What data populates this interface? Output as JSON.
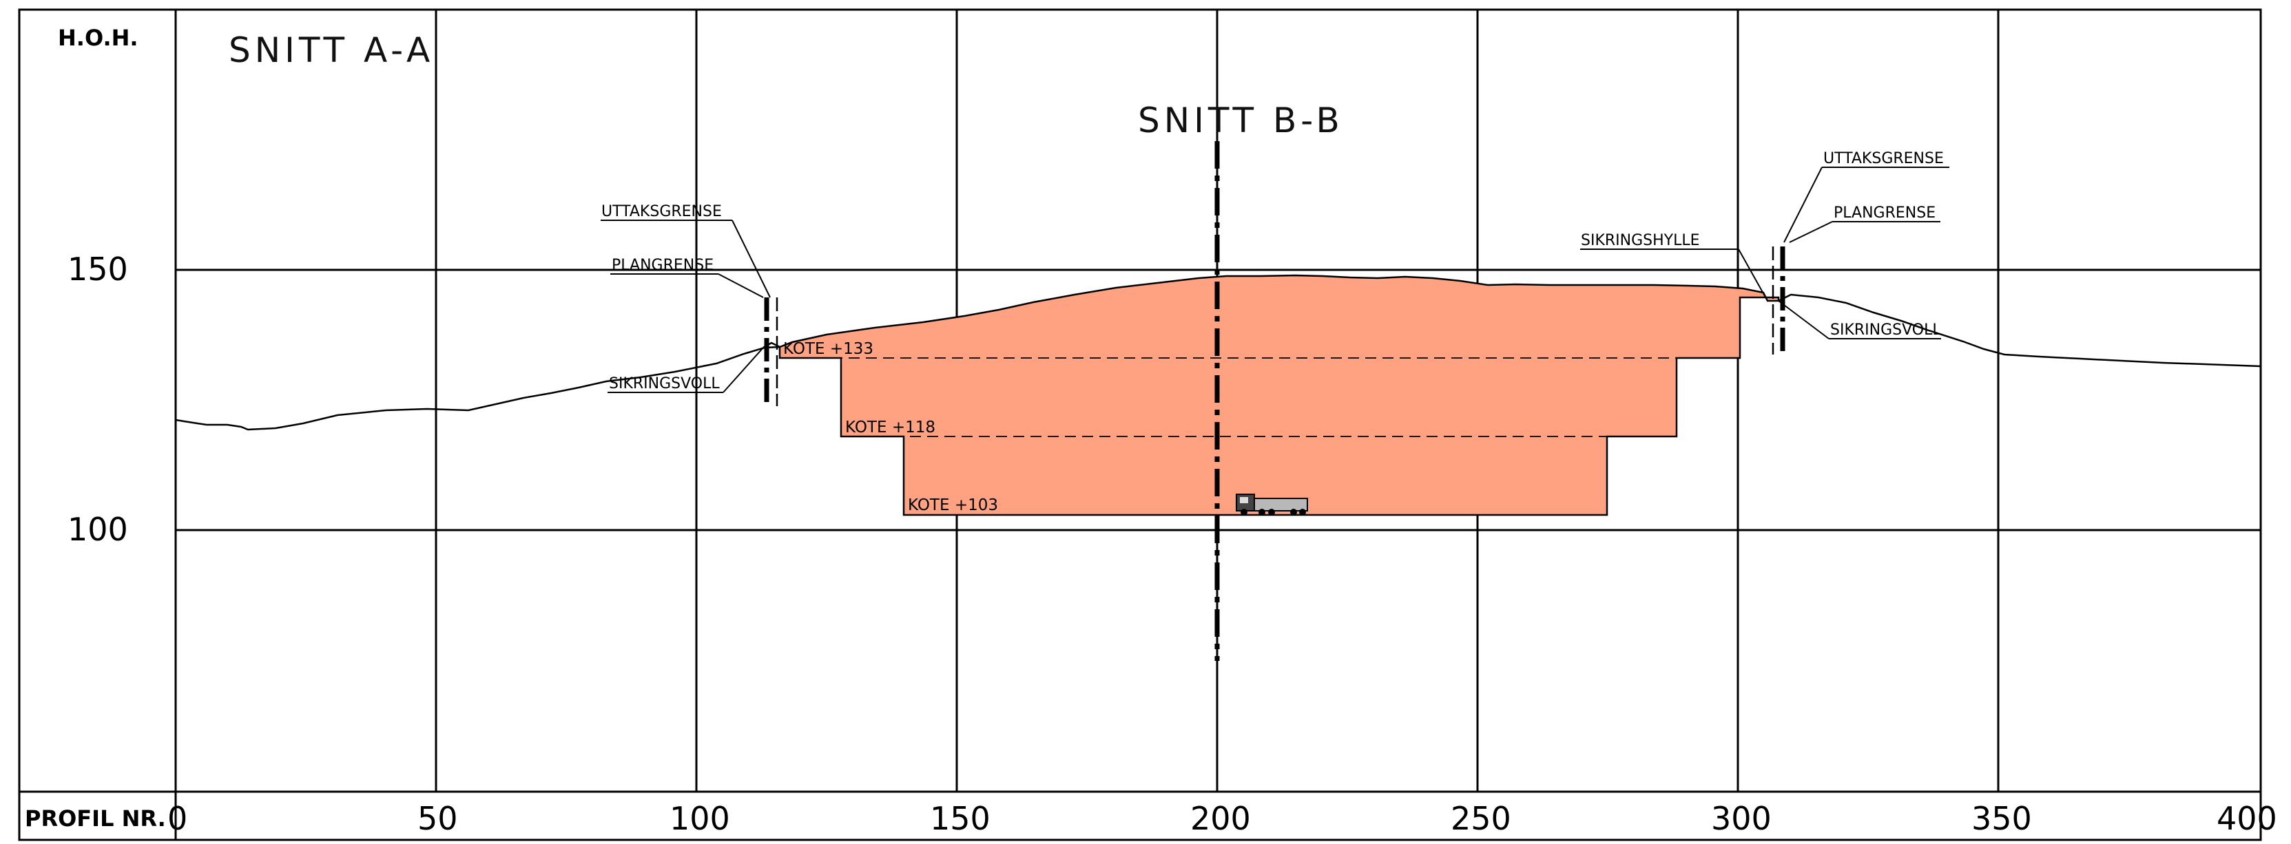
{
  "drawing": {
    "left_header": "H.O.H.",
    "bottom_header": "PROFIL NR.",
    "section_a_title": "SNITT A-A",
    "section_b_title": "SNITT B-B",
    "colors": {
      "fill": "#ffa282",
      "line": "#000000",
      "background": "#ffffff"
    }
  },
  "axes": {
    "profile_range": [
      0,
      400
    ],
    "profile_ticks": [
      "0",
      "50",
      "100",
      "150",
      "200",
      "250",
      "300",
      "350",
      "400"
    ],
    "elevation_ticks": [
      "150",
      "100"
    ]
  },
  "levels": [
    {
      "label": "KOTE +133",
      "elevation": 133
    },
    {
      "label": "KOTE +118",
      "elevation": 118
    },
    {
      "label": "KOTE +103",
      "elevation": 103
    }
  ],
  "annotations_left": {
    "uttaksgrense": "UTTAKSGRENSE",
    "plangrense": "PLANGRENSE",
    "sikringsvoll": "SIKRINGSVOLL"
  },
  "annotations_right": {
    "uttaksgrense": "UTTAKSGRENSE",
    "plangrense": "PLANGRENSE",
    "sikringshylle": "SIKRINGSHYLLE",
    "sikringsvoll": "SIKRINGSVOLL"
  },
  "vehicle_icon": "dump-truck-icon"
}
